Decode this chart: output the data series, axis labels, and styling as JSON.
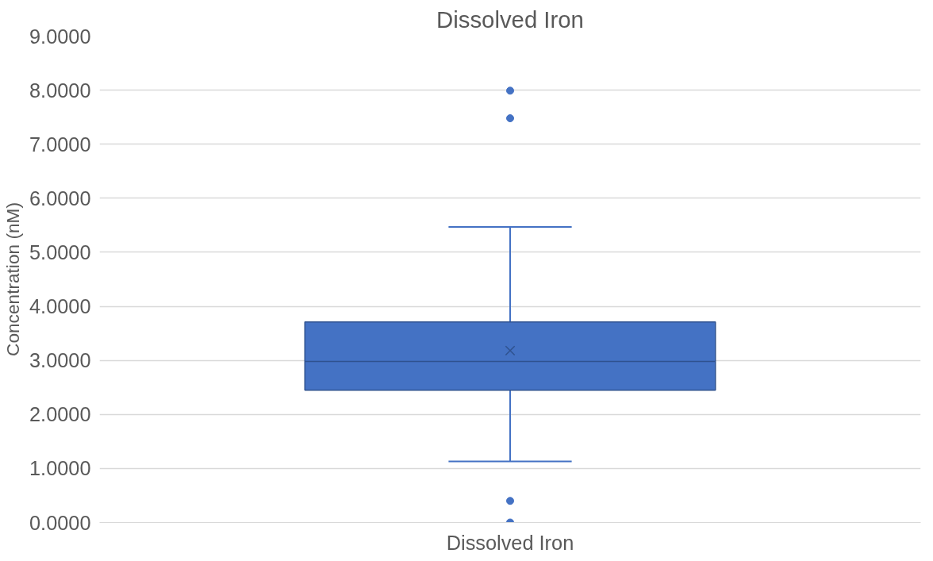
{
  "chart_data": {
    "type": "box",
    "title": "Dissolved Iron",
    "ylabel": "Concentration (nM)",
    "categories": [
      "Dissolved Iron"
    ],
    "series": [
      {
        "color": "#4472c4",
        "boxes": [
          {
            "low": 1.13,
            "q1": 2.45,
            "median": 2.98,
            "q3": 3.71,
            "high": 5.47,
            "mean": 3.18,
            "outliers": [
              7.99,
              7.48,
              0.4,
              0.0
            ]
          }
        ]
      }
    ],
    "ylim": [
      0,
      9
    ],
    "yticks": [
      {
        "value": 0,
        "label": "0.0000"
      },
      {
        "value": 1,
        "label": "1.0000"
      },
      {
        "value": 2,
        "label": "2.0000"
      },
      {
        "value": 3,
        "label": "3.0000"
      },
      {
        "value": 4,
        "label": "4.0000"
      },
      {
        "value": 5,
        "label": "5.0000"
      },
      {
        "value": 6,
        "label": "6.0000"
      },
      {
        "value": 7,
        "label": "7.0000"
      },
      {
        "value": 8,
        "label": "8.0000"
      },
      {
        "value": 9,
        "label": "9.0000"
      }
    ],
    "grid": "y",
    "marker": "circle"
  }
}
